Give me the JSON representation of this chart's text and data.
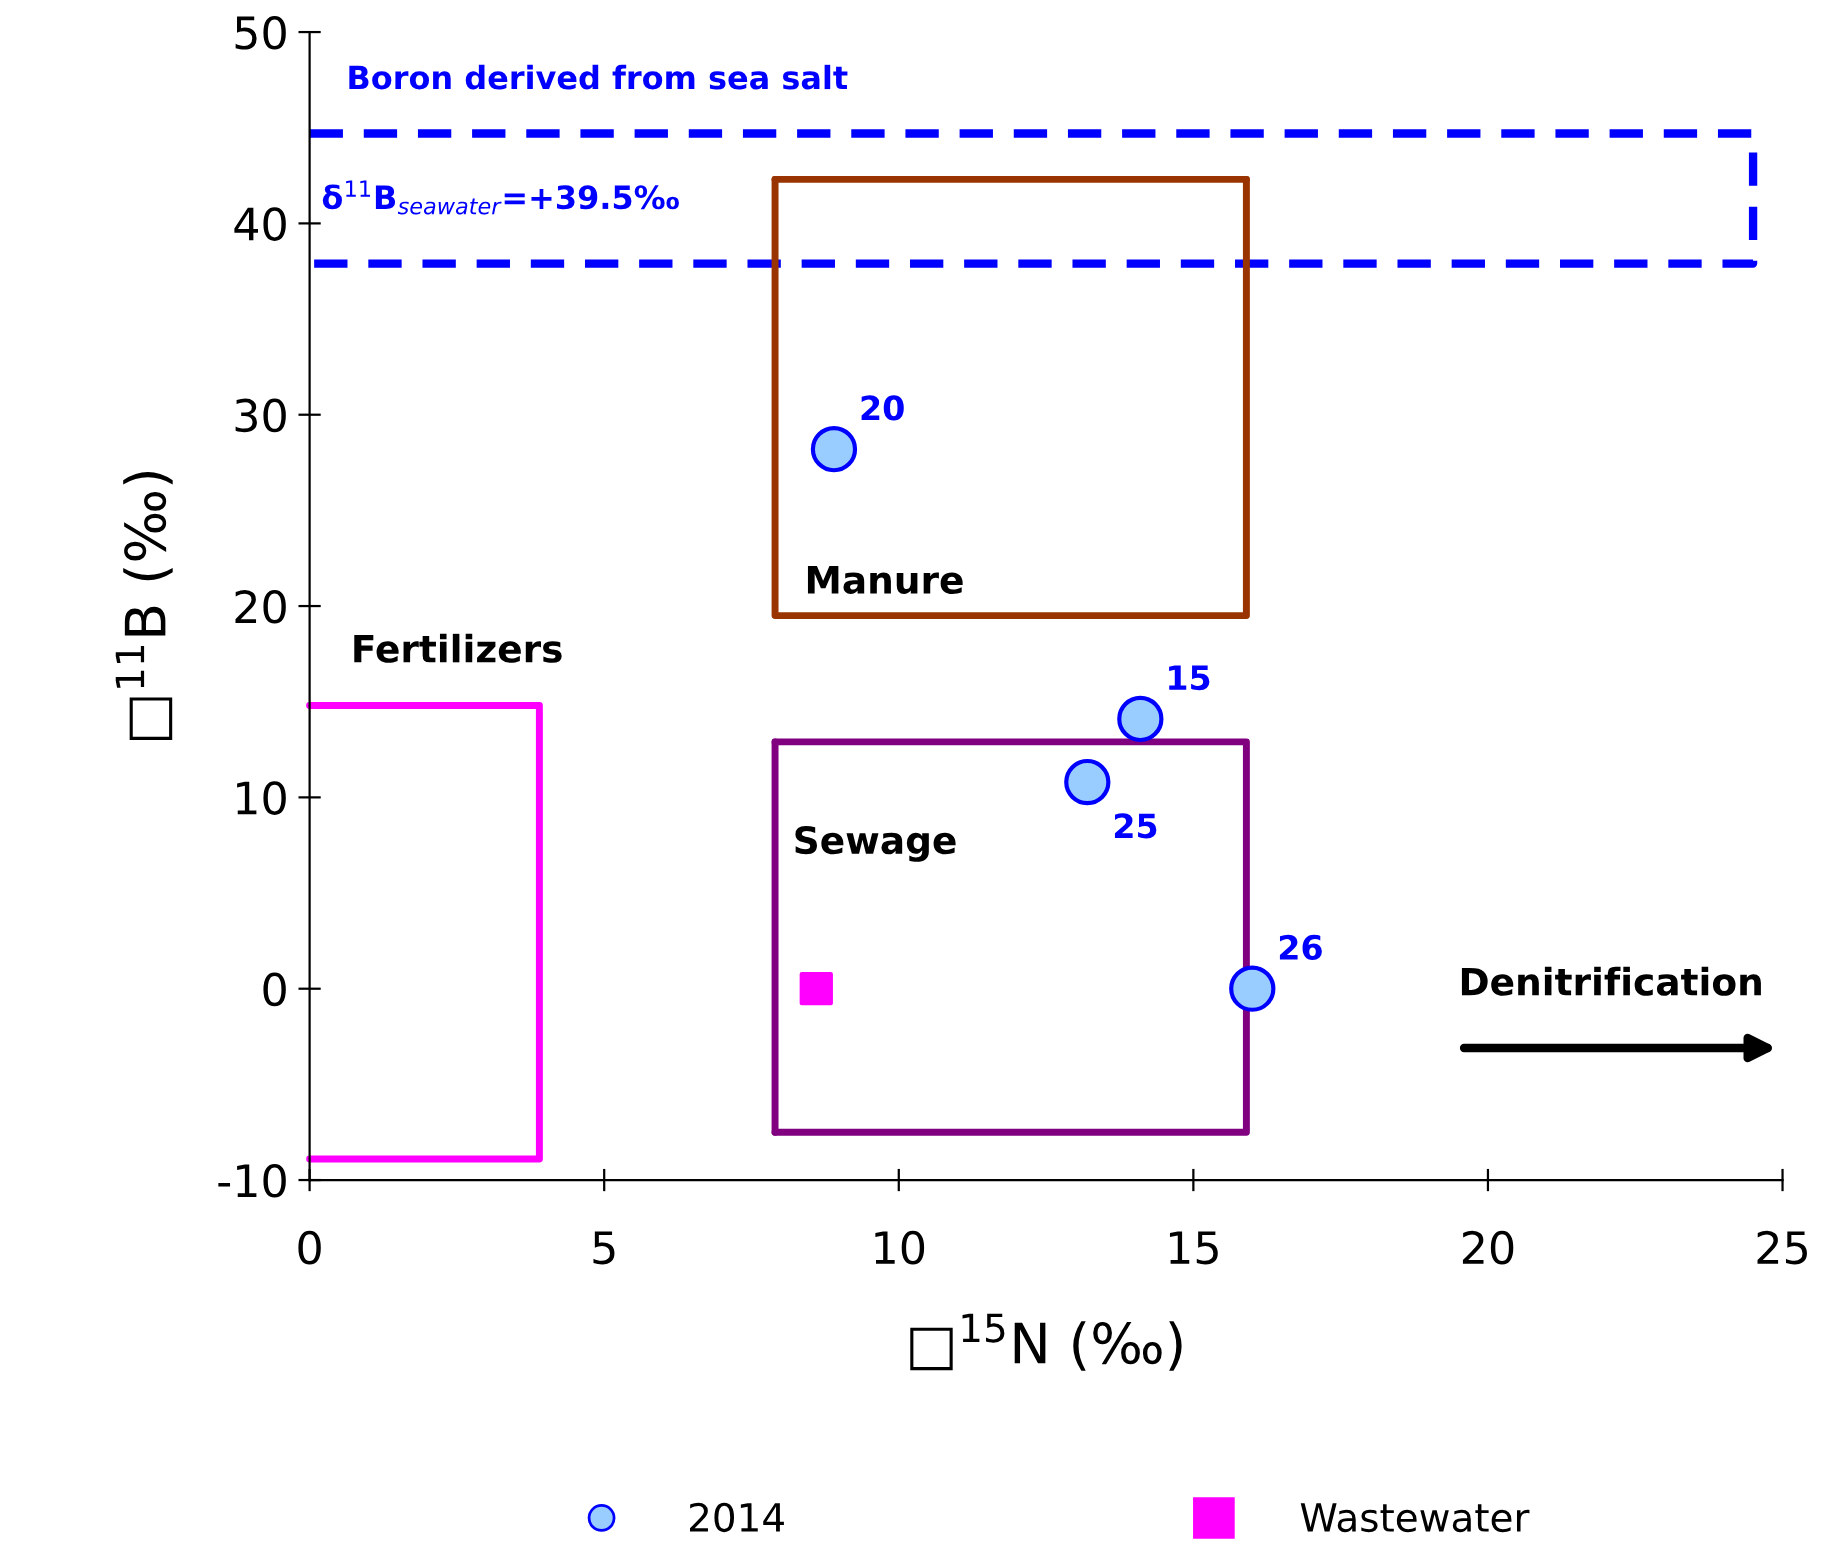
{
  "chart_data": {
    "type": "scatter",
    "xlabel": "□$^{15}$N (‰)",
    "ylabel": "□$^{11}$B (‰)",
    "xlim": [
      0,
      25
    ],
    "xticks": [
      0,
      5,
      10,
      15,
      20,
      25
    ],
    "ylim": [
      -10,
      50
    ],
    "yticks": [
      -10,
      0,
      10,
      20,
      30,
      40,
      50
    ],
    "grid": false,
    "legend": "bottom",
    "series": [
      {
        "type": "line",
        "color": "#0000ff",
        "line_style": "dashed",
        "x": [
          0,
          24.5,
          24.5,
          0
        ],
        "values": [
          44.7,
          44.7,
          37.9,
          37.9
        ]
      },
      {
        "type": "line",
        "color": "#993300",
        "line_style": "solid",
        "x": [
          15.9,
          15.9,
          7.9,
          7.9
        ],
        "values": [
          42.3,
          19.5,
          19.5,
          42.3
        ]
      },
      {
        "type": "line",
        "color": "#800080",
        "line_style": "solid",
        "x": [
          7.9,
          15.9,
          15.9,
          7.9
        ],
        "values": [
          12.9,
          12.9,
          -7.5,
          -7.5
        ]
      },
      {
        "type": "line",
        "color": "#ff00ff",
        "line_style": "solid",
        "x": [
          0,
          3.9,
          3.9,
          0
        ],
        "values": [
          14.8,
          14.8,
          -8.9,
          -8.9
        ]
      },
      {
        "name": "2014",
        "color": "#99ccff",
        "marker": "circle",
        "x": [
          8.9,
          14.1,
          13.2,
          16.0
        ],
        "values": [
          28.2,
          14.1,
          10.8,
          0
        ]
      },
      {
        "name": "Wastewater",
        "color": "#ff00ff",
        "marker": "square",
        "x": [
          8.6
        ],
        "values": [
          0
        ]
      }
    ],
    "annotations": [
      "Boron derived from sea salt",
      "δ$^{11}$B$_{seawater}$=+39.5‰",
      "Fertilizers",
      "Manure",
      "Sewage",
      "Denitrification",
      {
        "text": "20",
        "x": 8.9,
        "y": 28.2
      },
      {
        "text": "15",
        "x": 14.1,
        "y": 14.1
      },
      {
        "text": "25",
        "x": 13.2,
        "y": 10.8
      },
      {
        "text": "26",
        "x": 16.0,
        "y": 0
      }
    ]
  }
}
